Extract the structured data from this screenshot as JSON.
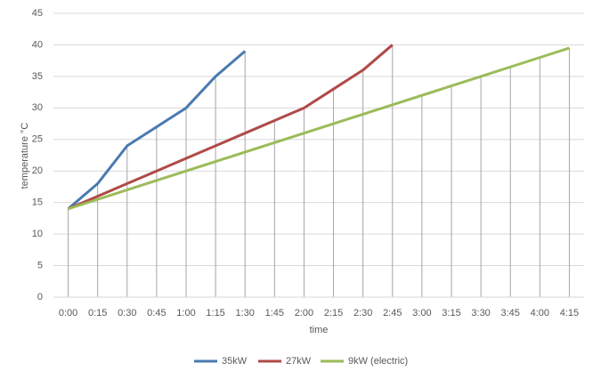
{
  "chart_data": {
    "type": "line",
    "y_label": "temperature °C",
    "x_label": "time",
    "categories": [
      "0:00",
      "0:15",
      "0:30",
      "0:45",
      "1:00",
      "1:15",
      "1:30",
      "1:45",
      "2:00",
      "2:15",
      "2:30",
      "2:45",
      "3:00",
      "3:15",
      "3:30",
      "3:45",
      "4:00",
      "4:15"
    ],
    "series": [
      {
        "name": "35kW",
        "color": "#4a7ab0",
        "values": [
          14,
          18,
          24,
          27,
          30,
          35,
          39,
          null,
          null,
          null,
          null,
          null,
          null,
          null,
          null,
          null,
          null,
          null
        ]
      },
      {
        "name": "27kW",
        "color": "#b04a48",
        "values": [
          14,
          16,
          18,
          20,
          22,
          24,
          26,
          28,
          30,
          33,
          36,
          40,
          null,
          null,
          null,
          null,
          null,
          null
        ]
      },
      {
        "name": "9kW (electric)",
        "color": "#9bbb59",
        "values": [
          14,
          15.5,
          17,
          18.5,
          20,
          21.5,
          23,
          24.5,
          26,
          27.5,
          29,
          30.5,
          32,
          33.5,
          35,
          36.5,
          38,
          39.5
        ]
      }
    ],
    "ylim": [
      0,
      45
    ],
    "yticks": [
      0,
      5,
      10,
      15,
      20,
      25,
      30,
      35,
      40,
      45
    ],
    "grid": true,
    "legend": "bottom"
  }
}
